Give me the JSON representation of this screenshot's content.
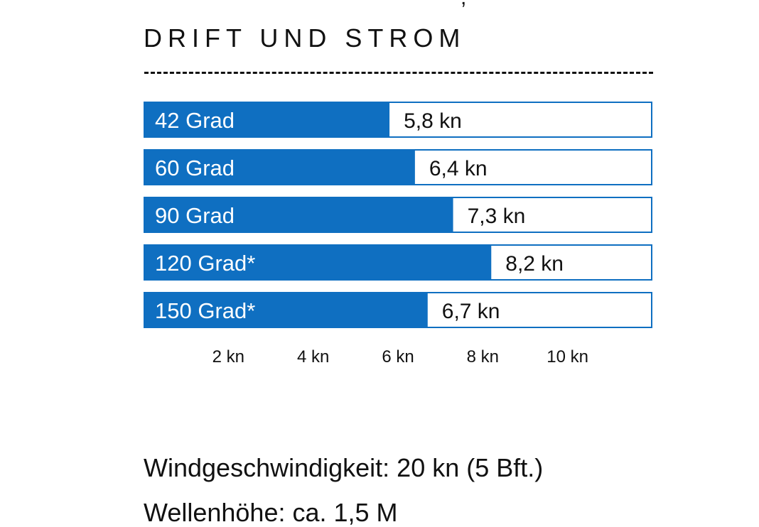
{
  "header": {
    "top_fragment": ",",
    "title": "DRIFT UND STROM"
  },
  "colors": {
    "bar": "#0f6fc1",
    "track_border": "#0f6fc1",
    "text": "#111111"
  },
  "chart_data": {
    "type": "bar",
    "orientation": "horizontal",
    "categories": [
      "42 Grad",
      "60 Grad",
      "90 Grad",
      "120 Grad*",
      "150 Grad*"
    ],
    "values": [
      5.8,
      6.4,
      7.3,
      8.2,
      6.7
    ],
    "value_labels": [
      "5,8 kn",
      "6,4 kn",
      "7,3 kn",
      "8,2 kn",
      "6,7 kn"
    ],
    "x_ticks": [
      2,
      4,
      6,
      8,
      10
    ],
    "x_tick_labels": [
      "2 kn",
      "4 kn",
      "6 kn",
      "8 kn",
      "10 kn"
    ],
    "xlim": [
      0,
      12
    ],
    "title": "DRIFT UND STROM",
    "xlabel": "",
    "ylabel": "",
    "grid": false
  },
  "footer": {
    "line1": "Windgeschwindigkeit: 20 kn (5 Bft.)",
    "line2": "Wellenhöhe: ca. 1,5 M"
  }
}
